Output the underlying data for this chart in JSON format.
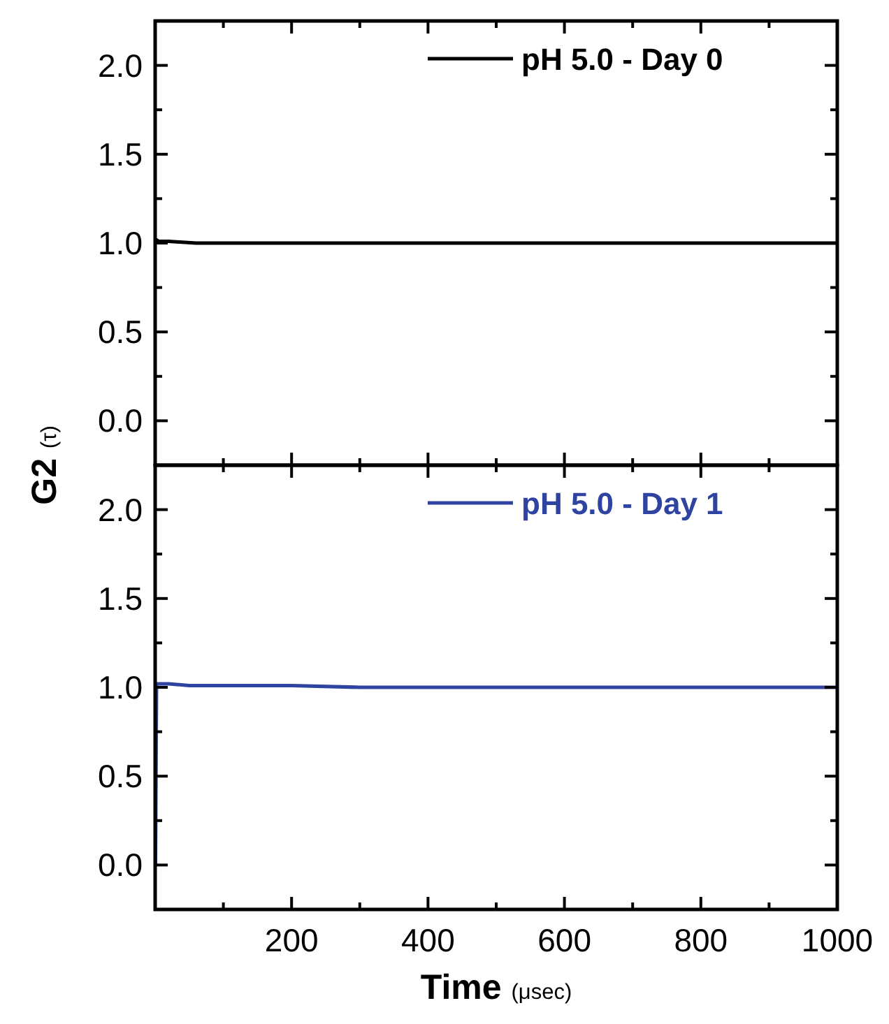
{
  "chart_data": [
    {
      "type": "line",
      "ylabel": "G2 (τ)",
      "xlim": [
        0,
        1000
      ],
      "ylim": [
        -0.25,
        2.25
      ],
      "xticks": [
        {
          "value": 100,
          "label": null
        },
        200,
        {
          "value": 300,
          "label": null
        },
        400,
        {
          "value": 500,
          "label": null
        },
        600,
        {
          "value": 700,
          "label": null
        },
        800,
        {
          "value": 900,
          "label": null
        },
        1000
      ],
      "yticks": [
        {
          "value": 0,
          "label": "0.0"
        },
        {
          "value": 0.25,
          "label": null
        },
        {
          "value": 0.5,
          "label": "0.5"
        },
        {
          "value": 0.75,
          "label": null
        },
        {
          "value": 1,
          "label": "1.0"
        },
        {
          "value": 1.25,
          "label": null
        },
        {
          "value": 1.5,
          "label": "1.5"
        },
        {
          "value": 1.75,
          "label": null
        },
        {
          "value": 2,
          "label": "2.0"
        }
      ],
      "tick_labels": "y",
      "legend": "top right",
      "grid": false,
      "marker": "none",
      "line_style": "solid",
      "series": [
        {
          "name": "pH 5.0 - Day 0",
          "color": "#000000",
          "x": [
            1,
            5,
            10,
            20,
            40,
            60,
            100,
            150,
            200,
            300,
            400,
            500,
            600,
            700,
            800,
            900,
            1000
          ],
          "values": [
            1.02,
            1.01,
            1.01,
            1.01,
            1.005,
            1.0,
            1.0,
            1.0,
            1.0,
            1.0,
            1.0,
            1.0,
            1.0,
            1.0,
            1.0,
            1.0,
            1.0
          ]
        }
      ]
    },
    {
      "type": "line",
      "xlabel": "Time (μsec)",
      "xlim": [
        0,
        1000
      ],
      "ylim": [
        -0.25,
        2.25
      ],
      "xticks": [
        {
          "value": 100,
          "label": null
        },
        200,
        {
          "value": 300,
          "label": null
        },
        400,
        {
          "value": 500,
          "label": null
        },
        600,
        {
          "value": 700,
          "label": null
        },
        800,
        {
          "value": 900,
          "label": null
        },
        1000
      ],
      "yticks": [
        {
          "value": 0,
          "label": "0.0"
        },
        {
          "value": 0.25,
          "label": null
        },
        {
          "value": 0.5,
          "label": "0.5"
        },
        {
          "value": 0.75,
          "label": null
        },
        {
          "value": 1,
          "label": "1.0"
        },
        {
          "value": 1.25,
          "label": null
        },
        {
          "value": 1.5,
          "label": "1.5"
        },
        {
          "value": 1.75,
          "label": null
        },
        {
          "value": 2,
          "label": "2.0"
        }
      ],
      "legend": "top right",
      "grid": false,
      "marker": "none",
      "line_style": "solid",
      "series": [
        {
          "name": "pH 5.0 - Day 1",
          "color": "#2e44a0",
          "x": [
            0.5,
            2,
            5,
            10,
            20,
            50,
            100,
            150,
            200,
            300,
            400,
            500,
            600,
            700,
            800,
            900,
            1000
          ],
          "values": [
            0.0,
            1.02,
            1.02,
            1.02,
            1.02,
            1.01,
            1.01,
            1.01,
            1.01,
            1.0,
            1.0,
            1.0,
            1.0,
            1.0,
            1.0,
            1.0,
            1.0
          ]
        }
      ]
    }
  ]
}
